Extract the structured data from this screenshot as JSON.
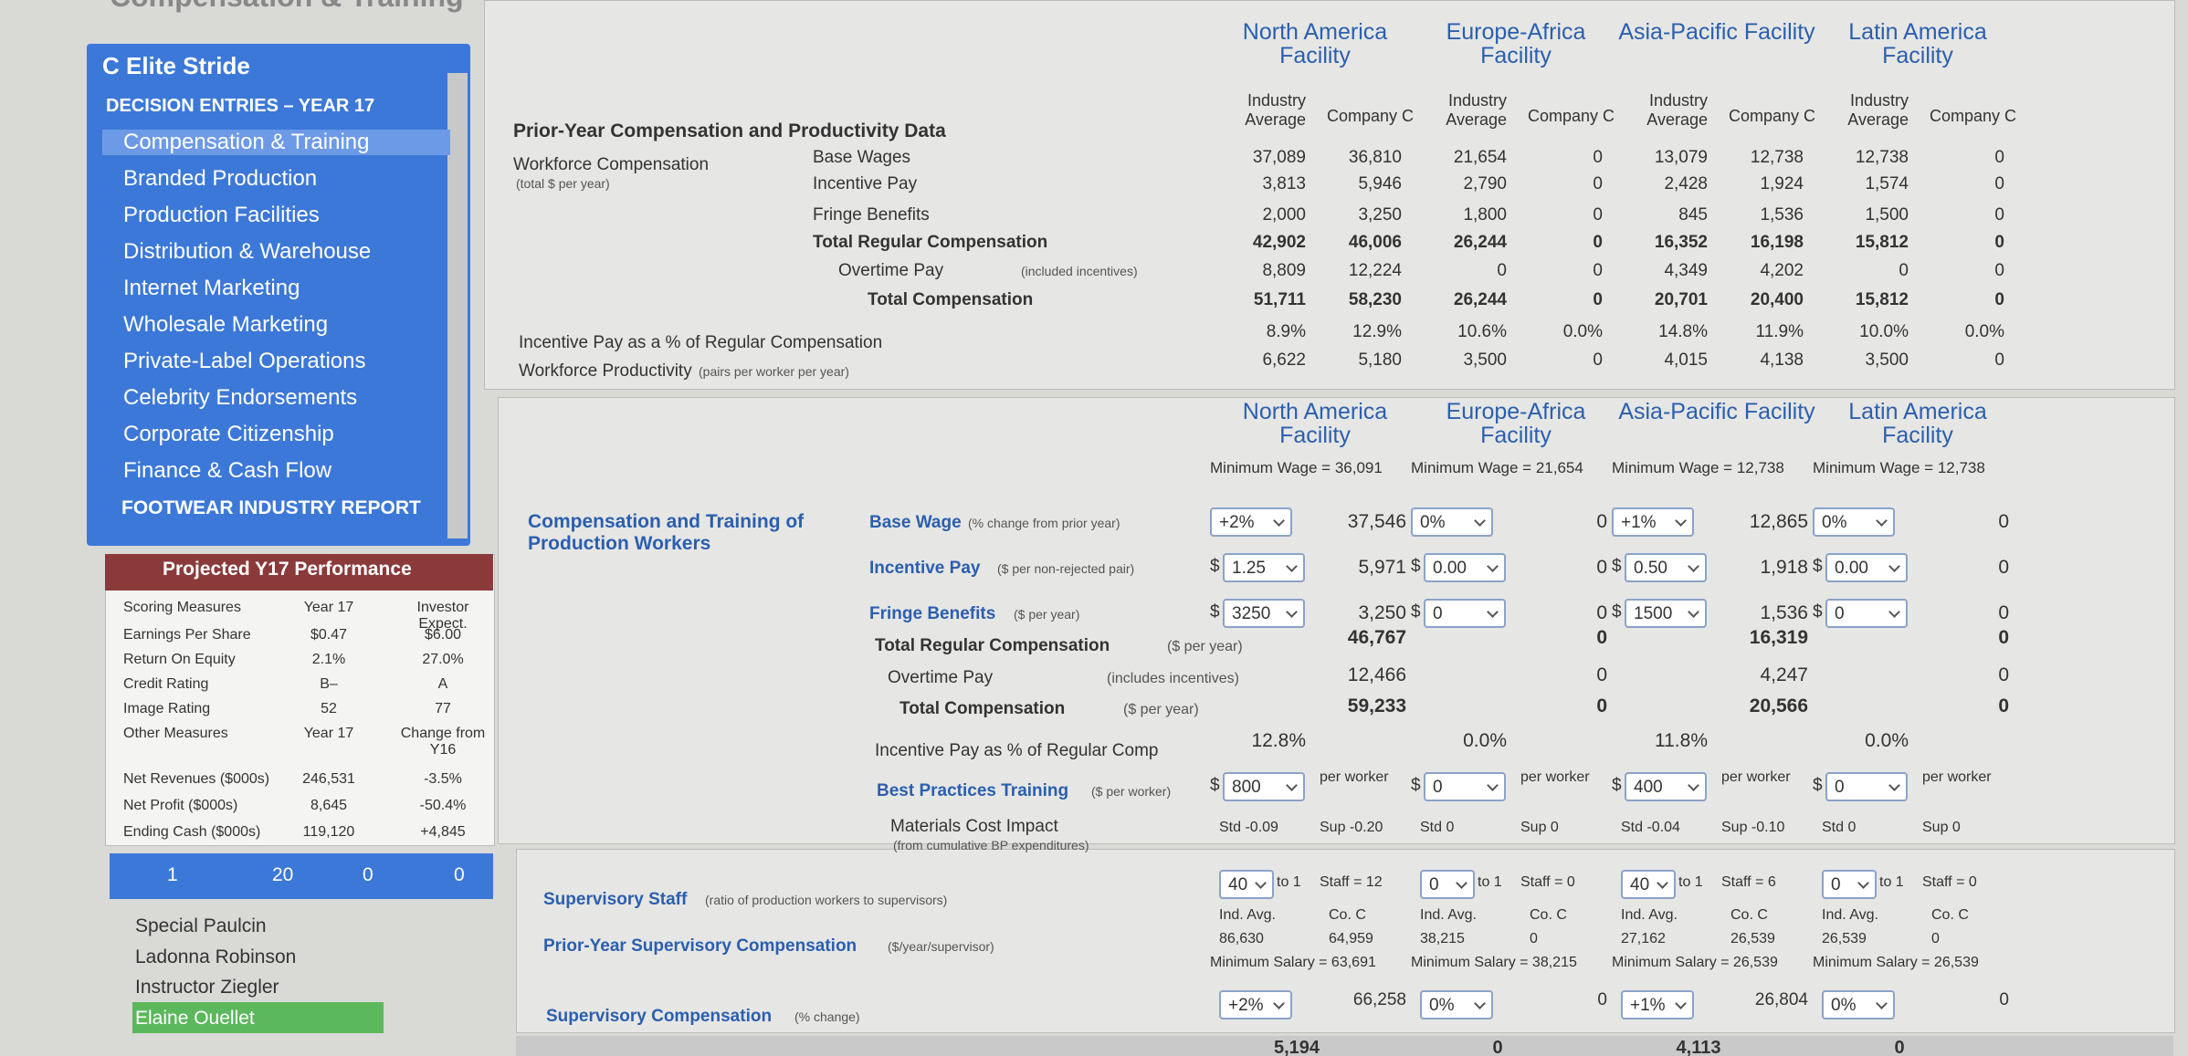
{
  "header": {
    "title": "Compensation & Training"
  },
  "sidebar": {
    "company": "C Elite Stride",
    "section": "DECISION ENTRIES – YEAR 17",
    "items": [
      "Compensation & Training",
      "Branded Production",
      "Production Facilities",
      "Distribution & Warehouse",
      "Internet Marketing",
      "Wholesale Marketing",
      "Private-Label Operations",
      "Celebrity Endorsements",
      "Corporate Citizenship",
      "Finance & Cash Flow"
    ],
    "report": "FOOTWEAR INDUSTRY REPORT"
  },
  "performance": {
    "title": "Projected Y17 Performance",
    "scoring_headers": [
      "Scoring Measures",
      "Year 17",
      "Investor Expect."
    ],
    "scoring_rows": [
      [
        "Earnings Per Share",
        "$0.47",
        "$6.00"
      ],
      [
        "Return On Equity",
        "2.1%",
        "27.0%"
      ],
      [
        "Credit Rating",
        "B–",
        "A"
      ],
      [
        "Image Rating",
        "52",
        "77"
      ]
    ],
    "other_headers": [
      "Other Measures",
      "Year 17",
      "Change from Y16"
    ],
    "other_rows": [
      [
        "Net Revenues ($000s)",
        "246,531",
        "-3.5%"
      ],
      [
        "Net Profit ($000s)",
        "8,645",
        "-50.4%"
      ],
      [
        "Ending Cash ($000s)",
        "119,120",
        "+4,845"
      ]
    ]
  },
  "tabs": [
    "1",
    "20",
    "0",
    "0"
  ],
  "people": [
    "Special Paulcin",
    "Ladonna Robinson",
    "Instructor Ziegler",
    "Elaine Ouellet"
  ],
  "prior": {
    "title": "Prior-Year Compensation and Productivity Data",
    "facilities": [
      "North America Facility",
      "Europe-Africa Facility",
      "Asia-Pacific Facility",
      "Latin America Facility"
    ],
    "col_headers": [
      "Industry Average",
      "Company C"
    ],
    "group_label": "Workforce Compensation",
    "group_note": "(total $ per year)",
    "rows": [
      {
        "label": "Base Wages",
        "values": [
          "37,089",
          "36,810",
          "21,654",
          "0",
          "13,079",
          "12,738",
          "12,738",
          "0"
        ]
      },
      {
        "label": "Incentive Pay",
        "values": [
          "3,813",
          "5,946",
          "2,790",
          "0",
          "2,428",
          "1,924",
          "1,574",
          "0"
        ]
      },
      {
        "label": "Fringe Benefits",
        "values": [
          "2,000",
          "3,250",
          "1,800",
          "0",
          "845",
          "1,536",
          "1,500",
          "0"
        ]
      },
      {
        "label": "Total Regular Compensation",
        "values": [
          "42,902",
          "46,006",
          "26,244",
          "0",
          "16,352",
          "16,198",
          "15,812",
          "0"
        ]
      },
      {
        "label": "Overtime Pay",
        "note": "(included incentives)",
        "values": [
          "8,809",
          "12,224",
          "0",
          "0",
          "4,349",
          "4,202",
          "0",
          "0"
        ]
      },
      {
        "label": "Total Compensation",
        "values": [
          "51,711",
          "58,230",
          "26,244",
          "0",
          "20,701",
          "20,400",
          "15,812",
          "0"
        ]
      }
    ],
    "extra_rows": [
      {
        "label": "Incentive Pay as a % of Regular Compensation",
        "values": [
          "8.9%",
          "12.9%",
          "10.6%",
          "0.0%",
          "14.8%",
          "11.9%",
          "10.0%",
          "0.0%"
        ]
      },
      {
        "label": "Workforce Productivity",
        "note": "(pairs per worker per year)",
        "values": [
          "6,622",
          "5,180",
          "3,500",
          "0",
          "4,015",
          "4,138",
          "3,500",
          "0"
        ]
      }
    ]
  },
  "decisions": {
    "section": "Compensation and Training of Production Workers",
    "min_wages": [
      "Minimum Wage = 36,091",
      "Minimum Wage = 21,654",
      "Minimum Wage = 12,738",
      "Minimum Wage = 12,738"
    ],
    "currency": "$",
    "input_rows": [
      {
        "label": "Base Wage",
        "note": "(% change from prior year)",
        "inputs": [
          "+2%",
          "0%",
          "+1%",
          "0%"
        ],
        "results": [
          "37,546",
          "0",
          "12,865",
          "0"
        ]
      },
      {
        "label": "Incentive Pay",
        "note": "($ per non-rejected pair)",
        "money": true,
        "inputs": [
          "1.25",
          "0.00",
          "0.50",
          "0.00"
        ],
        "results": [
          "5,971",
          "0",
          "1,918",
          "0"
        ]
      },
      {
        "label": "Fringe Benefits",
        "note": "($ per year)",
        "money": true,
        "inputs": [
          "3250",
          "0",
          "1500",
          "0"
        ],
        "results": [
          "3,250",
          "0",
          "1,536",
          "0"
        ]
      }
    ],
    "total_rows": [
      {
        "label": "Total Regular Compensation",
        "note": "($ per year)",
        "results": [
          "46,767",
          "0",
          "16,319",
          "0"
        ]
      },
      {
        "label": "Overtime Pay",
        "note": "(includes incentives)",
        "results": [
          "12,466",
          "0",
          "4,247",
          "0"
        ]
      },
      {
        "label": "Total Compensation",
        "note": "($ per year)",
        "results": [
          "59,233",
          "0",
          "20,566",
          "0"
        ]
      },
      {
        "label": "Incentive Pay as % of Regular Comp",
        "results": [
          "12.8%",
          "0.0%",
          "11.8%",
          "0.0%"
        ]
      }
    ],
    "training": {
      "label": "Best Practices Training",
      "note": "($ per worker)",
      "inputs": [
        "800",
        "0",
        "400",
        "0"
      ],
      "unit": "per worker"
    },
    "materials": {
      "label": "Materials Cost Impact",
      "note": "(from cumulative BP expenditures)",
      "values": [
        [
          "Std -0.09",
          "Sup -0.20"
        ],
        [
          "Std 0",
          "Sup 0"
        ],
        [
          "Std -0.04",
          "Sup -0.10"
        ],
        [
          "Std 0",
          "Sup 0"
        ]
      ]
    }
  },
  "supervisory": {
    "staff": {
      "label": "Supervisory Staff",
      "note": "(ratio of production workers to supervisors)",
      "inputs": [
        "40",
        "0",
        "40",
        "0"
      ],
      "unit": "to 1",
      "counts": [
        "Staff = 12",
        "Staff = 0",
        "Staff = 6",
        "Staff = 0"
      ]
    },
    "prior_comp": {
      "label": "Prior-Year Supervisory Compensation",
      "note": "($/year/supervisor)",
      "headers": [
        "Ind. Avg.",
        "Co. C"
      ],
      "values": [
        [
          "86,630",
          "64,959"
        ],
        [
          "38,215",
          "0"
        ],
        [
          "27,162",
          "26,539"
        ],
        [
          "26,539",
          "0"
        ]
      ],
      "min_salaries": [
        "Minimum Salary = 63,691",
        "Minimum Salary = 38,215",
        "Minimum Salary = 26,539",
        "Minimum Salary = 26,539"
      ]
    },
    "comp": {
      "label": "Supervisory Compensation",
      "note": "(% change)",
      "inputs": [
        "+2%",
        "0%",
        "+1%",
        "0%"
      ],
      "results": [
        "66,258",
        "0",
        "26,804",
        "0"
      ]
    },
    "bottom": [
      "5,194",
      "0",
      "4,113",
      "0"
    ]
  }
}
